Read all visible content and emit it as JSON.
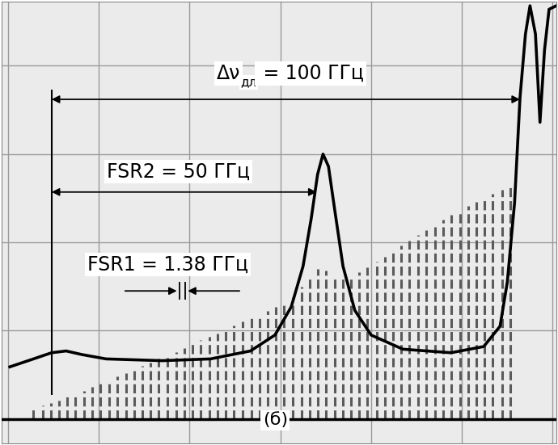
{
  "chart_data": {
    "type": "line",
    "xlim": [
      -0.07,
      6.04
    ],
    "ylim": [
      -0.28,
      4.73
    ],
    "xticks": [
      0,
      1,
      2,
      3,
      4,
      5,
      6
    ],
    "yticks": [
      0,
      1,
      2,
      3,
      4
    ],
    "grid": true,
    "tick_labels": false,
    "series": [
      {
        "type": "line",
        "color": "#000000",
        "line_style": "solid",
        "x": [
          0.02,
          0.28,
          0.48,
          0.64,
          0.81,
          1.08,
          1.7,
          2.23,
          2.67,
          2.94,
          3.12,
          3.25,
          3.34,
          3.41,
          3.47,
          3.53,
          3.6,
          3.69,
          3.82,
          4.0,
          4.35,
          4.88,
          5.24,
          5.42,
          5.5,
          5.58,
          5.64,
          5.7,
          5.75,
          5.81,
          5.86,
          5.91,
          5.96,
          6.04
        ],
        "values": [
          0.59,
          0.68,
          0.75,
          0.77,
          0.73,
          0.68,
          0.66,
          0.68,
          0.77,
          0.95,
          1.27,
          1.73,
          2.27,
          2.77,
          3.0,
          2.86,
          2.36,
          1.73,
          1.23,
          0.95,
          0.79,
          0.75,
          0.82,
          1.05,
          1.55,
          2.45,
          3.64,
          4.36,
          4.68,
          4.36,
          3.36,
          4.18,
          4.64,
          4.68
        ]
      },
      {
        "type": "stem",
        "color": "#5a5a5a",
        "line_style": "dashed",
        "baseline": 0,
        "x": [
          0.28,
          0.38,
          0.47,
          0.56,
          0.65,
          0.74,
          0.84,
          0.93,
          1.02,
          1.11,
          1.2,
          1.3,
          1.39,
          1.48,
          1.57,
          1.66,
          1.76,
          1.85,
          1.94,
          2.03,
          2.12,
          2.22,
          2.31,
          2.4,
          2.49,
          2.58,
          2.68,
          2.77,
          2.86,
          2.95,
          3.04,
          3.14,
          3.23,
          3.32,
          3.41,
          3.5,
          3.6,
          3.69,
          3.78,
          3.87,
          3.96,
          4.06,
          4.15,
          4.24,
          4.33,
          4.42,
          4.52,
          4.61,
          4.7,
          4.79,
          4.88,
          4.98,
          5.07,
          5.16,
          5.25,
          5.34,
          5.44,
          5.53
        ],
        "values": [
          0.12,
          0.15,
          0.18,
          0.21,
          0.25,
          0.28,
          0.32,
          0.36,
          0.4,
          0.44,
          0.48,
          0.52,
          0.56,
          0.6,
          0.64,
          0.68,
          0.72,
          0.76,
          0.8,
          0.85,
          0.89,
          0.93,
          0.97,
          1.01,
          1.06,
          1.1,
          1.14,
          1.18,
          1.22,
          1.27,
          1.31,
          1.38,
          1.5,
          1.62,
          1.7,
          1.68,
          1.62,
          1.6,
          1.62,
          1.66,
          1.72,
          1.78,
          1.84,
          1.9,
          1.96,
          2.02,
          2.08,
          2.14,
          2.2,
          2.26,
          2.31,
          2.36,
          2.41,
          2.46,
          2.5,
          2.55,
          2.6,
          2.64
        ]
      }
    ],
    "reference_line": {
      "x": 0.48,
      "y": [
        0.27,
        3.73
      ]
    },
    "annotations": {
      "full_range": {
        "symbol": "Δν",
        "subscript": "дл",
        "text": " = 100 ГГц",
        "x": [
          0.48,
          5.64
        ],
        "y": 3.62
      },
      "fsr2": {
        "text": "FSR2 = 50 ГГц",
        "x": [
          0.48,
          3.4
        ],
        "y": 2.57
      },
      "fsr1": {
        "text": "FSR1 = 1.38 ГГц",
        "x": [
          1.89,
          1.95
        ],
        "y": [
          1.35,
          1.55
        ]
      },
      "panel": {
        "text": "(б)"
      }
    }
  }
}
